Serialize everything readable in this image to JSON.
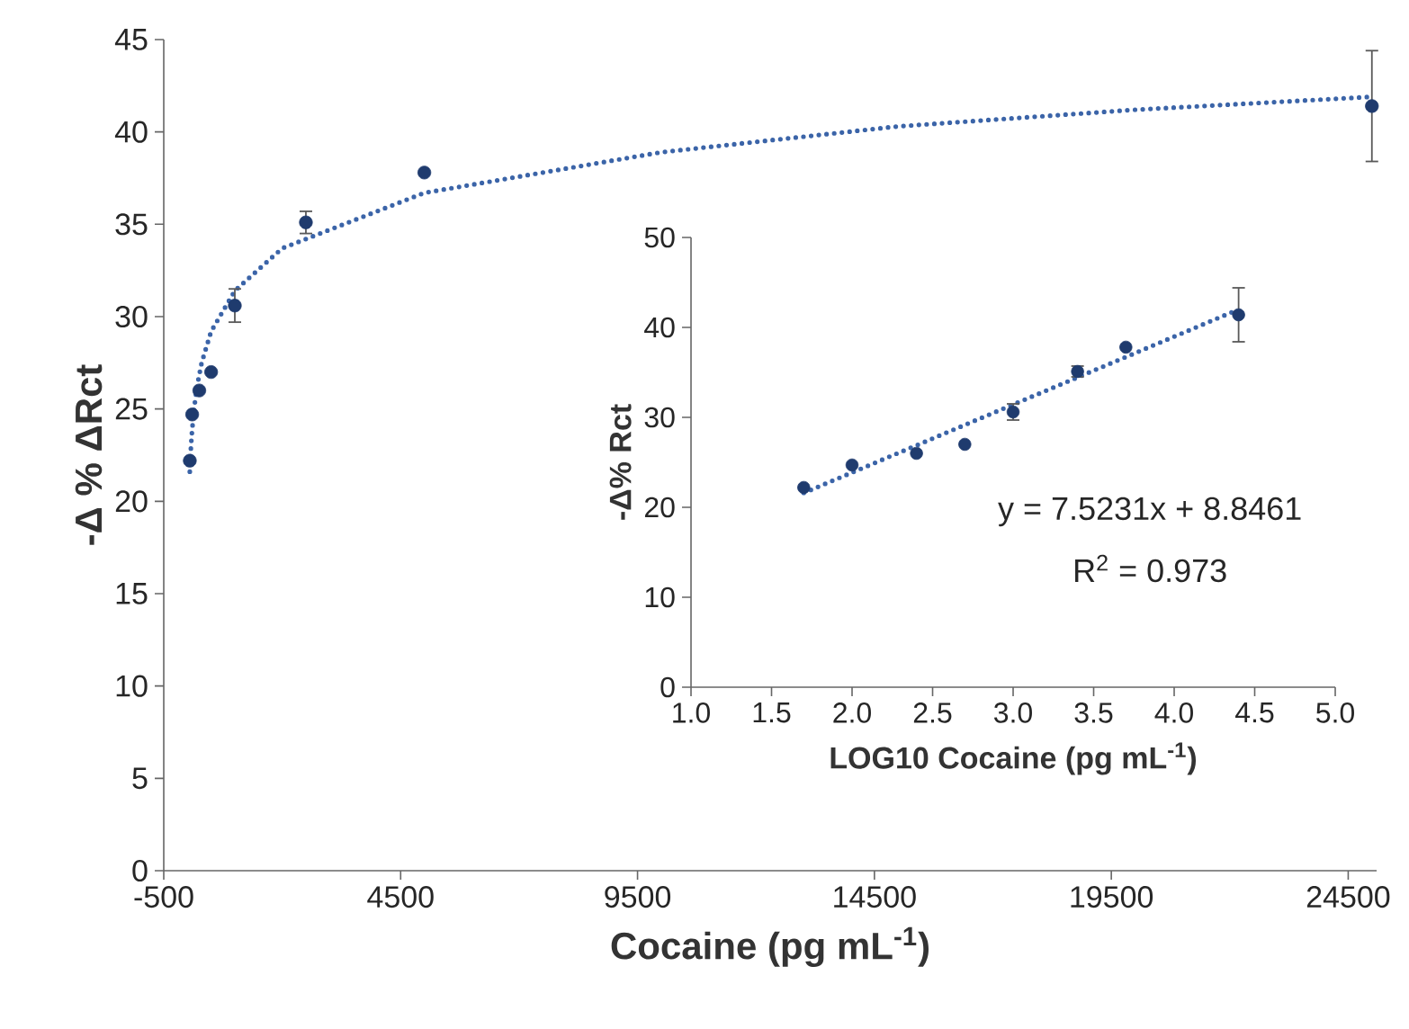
{
  "chart_data": [
    {
      "type": "scatter",
      "xlabel": "Cocaine (pg mL$^{-1}$)",
      "ylabel": "-Δ % ΔRct",
      "xlim": [
        -500,
        25100
      ],
      "ylim": [
        0,
        45
      ],
      "xticks": [
        -500,
        4500,
        9500,
        14500,
        19500,
        24500
      ],
      "yticks": [
        0,
        5,
        10,
        15,
        20,
        25,
        30,
        35,
        40,
        45
      ],
      "series": [
        {
          "type": "line",
          "color": "#3b64a8",
          "line_style": "dotted",
          "marker": "none",
          "x": [
            50,
            75,
            100,
            150,
            200,
            300,
            500,
            1000,
            2000,
            5000,
            10000,
            15000,
            20000,
            25000
          ],
          "values": [
            21.6,
            23.0,
            23.9,
            25.2,
            26.2,
            27.5,
            29.2,
            31.4,
            33.7,
            36.7,
            38.9,
            40.3,
            41.2,
            41.9
          ]
        },
        {
          "color": "#1f3b6e",
          "marker": "circle",
          "x": [
            50,
            100,
            250,
            500,
            1000,
            2500,
            5000,
            25000
          ],
          "values": [
            22.2,
            24.7,
            26.0,
            27.0,
            30.6,
            35.1,
            37.8,
            41.4
          ],
          "errors": [
            null,
            null,
            null,
            null,
            0.9,
            0.6,
            null,
            3.0
          ]
        }
      ]
    },
    {
      "type": "scatter",
      "xlabel": "LOG10 Cocaine (pg mL$^{-1}$)",
      "ylabel": "-Δ% Rct",
      "xlim": [
        1.0,
        5.0
      ],
      "ylim": [
        0,
        50
      ],
      "xticks": [
        {
          "value": 1.0,
          "label": "1.0"
        },
        {
          "value": 1.5,
          "label": "1.5"
        },
        {
          "value": 2.0,
          "label": "2.0"
        },
        {
          "value": 2.5,
          "label": "2.5"
        },
        {
          "value": 3.0,
          "label": "3.0"
        },
        {
          "value": 3.5,
          "label": "3.5"
        },
        {
          "value": 4.0,
          "label": "4.0"
        },
        {
          "value": 4.5,
          "label": "4.5"
        },
        {
          "value": 5.0,
          "label": "5.0"
        }
      ],
      "yticks": [
        0,
        10,
        20,
        30,
        40,
        50
      ],
      "annotations": [
        "y = 7.5231x + 8.8461",
        "R$^{2}$ = 0.973"
      ],
      "series": [
        {
          "type": "line",
          "color": "#3b64a8",
          "line_style": "dotted",
          "marker": "none",
          "x": [
            1.7,
            4.4
          ],
          "values": [
            21.6,
            42.0
          ]
        },
        {
          "color": "#1f3b6e",
          "marker": "circle",
          "x": [
            1.7,
            2.0,
            2.4,
            2.7,
            3.0,
            3.4,
            3.7,
            4.4
          ],
          "values": [
            22.2,
            24.7,
            26.0,
            27.0,
            30.6,
            35.1,
            37.8,
            41.4
          ],
          "errors": [
            null,
            null,
            null,
            null,
            0.9,
            0.6,
            null,
            3.0
          ]
        }
      ]
    }
  ]
}
